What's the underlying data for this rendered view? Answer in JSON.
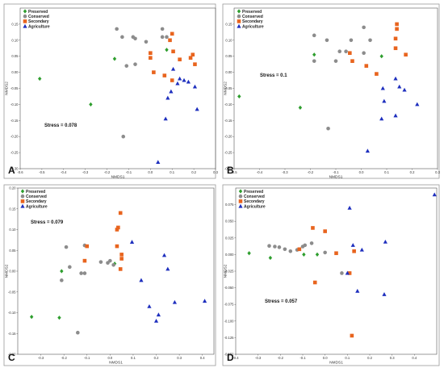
{
  "chart_data": [
    {
      "type": "scatter",
      "panel_letter": "A",
      "stress_label": "Stress = 0.078",
      "xlabel": "NMDS1",
      "ylabel": "NMDS2",
      "xlim": [
        -0.6,
        0.3
      ],
      "ylim": [
        -0.3,
        0.2
      ],
      "xticks": [
        -0.6,
        -0.5,
        -0.4,
        -0.3,
        -0.2,
        -0.1,
        0.0,
        0.1,
        0.2,
        0.3
      ],
      "xtick_labels": [
        "-0.6",
        "-0.5",
        "-0.4",
        "-0.3",
        "-0.2",
        "-0.1",
        "0.0",
        "0.1",
        "0.2",
        "0.3"
      ],
      "yticks": [
        -0.3,
        -0.25,
        -0.2,
        -0.15,
        -0.1,
        -0.05,
        0.0,
        0.05,
        0.1,
        0.15
      ],
      "ytick_labels": [
        "-0.30",
        "-0.25",
        "-0.20",
        "-0.15",
        "-0.10",
        "-0.05",
        "0.00",
        "0.05",
        "0.10",
        "0.15"
      ],
      "legend": "top-left",
      "series": [
        {
          "name": "Preserved",
          "color": "#2e9e2e",
          "marker": "diamond",
          "points": [
            [
              -0.51,
              -0.02
            ],
            [
              -0.275,
              -0.1
            ],
            [
              -0.165,
              0.042
            ],
            [
              0.075,
              0.07
            ]
          ]
        },
        {
          "name": "Conserved",
          "color": "#8c8c8c",
          "marker": "circle",
          "points": [
            [
              -0.155,
              0.135
            ],
            [
              -0.13,
              0.11
            ],
            [
              -0.125,
              -0.2
            ],
            [
              -0.11,
              0.02
            ],
            [
              -0.08,
              0.11
            ],
            [
              -0.07,
              0.105
            ],
            [
              -0.07,
              0.025
            ],
            [
              -0.02,
              0.095
            ],
            [
              0.055,
              0.135
            ],
            [
              0.055,
              0.11
            ],
            [
              0.075,
              0.11
            ]
          ]
        },
        {
          "name": "Secondary",
          "color": "#e8641e",
          "marker": "square",
          "points": [
            [
              0.0,
              0.06
            ],
            [
              0.0,
              0.045
            ],
            [
              0.015,
              0.0
            ],
            [
              0.065,
              -0.01
            ],
            [
              0.1,
              0.12
            ],
            [
              0.105,
              0.065
            ],
            [
              0.135,
              0.04
            ],
            [
              0.185,
              0.045
            ],
            [
              0.195,
              0.055
            ],
            [
              0.205,
              0.025
            ],
            [
              0.09,
              0.1
            ],
            [
              0.1,
              -0.025
            ]
          ]
        },
        {
          "name": "Agriculture",
          "color": "#1e2fbe",
          "marker": "triangle",
          "points": [
            [
              0.035,
              -0.28
            ],
            [
              0.07,
              -0.145
            ],
            [
              0.08,
              -0.08
            ],
            [
              0.095,
              -0.06
            ],
            [
              0.105,
              0.01
            ],
            [
              0.125,
              -0.035
            ],
            [
              0.135,
              -0.02
            ],
            [
              0.155,
              -0.025
            ],
            [
              0.175,
              -0.03
            ],
            [
              0.205,
              -0.045
            ],
            [
              0.215,
              -0.115
            ]
          ]
        }
      ]
    },
    {
      "type": "scatter",
      "panel_letter": "B",
      "stress_label": "Stress = 0.1",
      "xlabel": "NMDS1",
      "ylabel": "NMDS2",
      "xlim": [
        -0.5,
        0.3
      ],
      "ylim": [
        -0.3,
        0.2
      ],
      "xticks": [
        -0.5,
        -0.4,
        -0.3,
        -0.2,
        -0.1,
        0.0,
        0.1,
        0.2,
        0.3
      ],
      "xtick_labels": [
        "-0.5",
        "-0.4",
        "-0.3",
        "-0.2",
        "-0.1",
        "0.0",
        "0.1",
        "0.2",
        "0.3"
      ],
      "yticks": [
        -0.3,
        -0.25,
        -0.2,
        -0.15,
        -0.1,
        -0.05,
        0.0,
        0.05,
        0.1,
        0.15
      ],
      "ytick_labels": [
        "-0.30",
        "-0.25",
        "-0.20",
        "-0.15",
        "-0.10",
        "-0.05",
        "0.00",
        "0.05",
        "0.10",
        "0.15"
      ],
      "legend": "top-left",
      "series": [
        {
          "name": "Preserved",
          "color": "#2e9e2e",
          "marker": "diamond",
          "points": [
            [
              -0.48,
              -0.075
            ],
            [
              -0.24,
              -0.11
            ],
            [
              -0.185,
              0.055
            ],
            [
              0.08,
              0.05
            ]
          ]
        },
        {
          "name": "Conserved",
          "color": "#8c8c8c",
          "marker": "circle",
          "points": [
            [
              -0.185,
              0.115
            ],
            [
              -0.185,
              0.035
            ],
            [
              -0.135,
              0.1
            ],
            [
              -0.13,
              -0.175
            ],
            [
              -0.1,
              0.035
            ],
            [
              -0.085,
              0.065
            ],
            [
              -0.06,
              0.065
            ],
            [
              -0.04,
              0.1
            ],
            [
              0.01,
              0.14
            ],
            [
              0.035,
              0.1
            ],
            [
              0.01,
              0.06
            ]
          ]
        },
        {
          "name": "Secondary",
          "color": "#e8641e",
          "marker": "square",
          "points": [
            [
              -0.045,
              0.06
            ],
            [
              -0.035,
              0.035
            ],
            [
              0.02,
              0.02
            ],
            [
              0.06,
              -0.005
            ],
            [
              0.135,
              0.075
            ],
            [
              0.14,
              0.135
            ],
            [
              0.14,
              0.15
            ],
            [
              0.175,
              0.055
            ],
            [
              0.135,
              0.105
            ]
          ]
        },
        {
          "name": "Agriculture",
          "color": "#1e2fbe",
          "marker": "triangle",
          "points": [
            [
              0.025,
              -0.245
            ],
            [
              0.08,
              -0.145
            ],
            [
              0.09,
              -0.09
            ],
            [
              0.135,
              -0.135
            ],
            [
              0.135,
              -0.02
            ],
            [
              0.15,
              -0.045
            ],
            [
              0.17,
              -0.055
            ],
            [
              0.22,
              -0.1
            ],
            [
              0.085,
              -0.05
            ]
          ]
        }
      ]
    },
    {
      "type": "scatter",
      "panel_letter": "C",
      "stress_label": "Stress = 0.079",
      "xlabel": "NMDS1",
      "ylabel": "NMDS2",
      "xlim": [
        -0.4,
        0.45
      ],
      "ylim": [
        -0.2,
        0.2
      ],
      "xticks": [
        -0.3,
        -0.2,
        -0.1,
        0.0,
        0.1,
        0.2,
        0.3,
        0.4
      ],
      "xtick_labels": [
        "-0.3",
        "-0.2",
        "-0.1",
        "0.0",
        "0.1",
        "0.2",
        "0.3",
        "0.4"
      ],
      "yticks": [
        -0.2,
        -0.15,
        -0.1,
        -0.05,
        0.0,
        0.05,
        0.1,
        0.15,
        0.2
      ],
      "ytick_labels": [
        "-0.20",
        "-0.15",
        "-0.10",
        "-0.05",
        "0.00",
        "0.05",
        "0.10",
        "0.15",
        "0.20"
      ],
      "legend": "top-left",
      "series": [
        {
          "name": "Preserved",
          "color": "#2e9e2e",
          "marker": "diamond",
          "points": [
            [
              -0.34,
              -0.11
            ],
            [
              -0.22,
              -0.112
            ],
            [
              -0.21,
              0.0
            ],
            [
              0.02,
              0.018
            ]
          ]
        },
        {
          "name": "Conserved",
          "color": "#8c8c8c",
          "marker": "circle",
          "points": [
            [
              -0.21,
              -0.022
            ],
            [
              -0.19,
              0.058
            ],
            [
              -0.175,
              0.01
            ],
            [
              -0.14,
              -0.148
            ],
            [
              -0.125,
              -0.005
            ],
            [
              -0.11,
              -0.005
            ],
            [
              -0.11,
              0.062
            ],
            [
              -0.04,
              0.022
            ],
            [
              -0.01,
              0.02
            ],
            [
              0.0,
              0.025
            ],
            [
              0.015,
              0.015
            ]
          ]
        },
        {
          "name": "Secondary",
          "color": "#e8641e",
          "marker": "square",
          "points": [
            [
              -0.11,
              0.025
            ],
            [
              -0.1,
              0.06
            ],
            [
              0.03,
              0.1
            ],
            [
              0.035,
              0.105
            ],
            [
              0.045,
              0.14
            ],
            [
              0.05,
              0.04
            ],
            [
              0.05,
              0.03
            ],
            [
              0.045,
              0.005
            ],
            [
              0.03,
              0.06
            ]
          ]
        },
        {
          "name": "Agriculture",
          "color": "#1e2fbe",
          "marker": "triangle",
          "points": [
            [
              0.095,
              0.07
            ],
            [
              0.135,
              -0.022
            ],
            [
              0.17,
              -0.085
            ],
            [
              0.2,
              -0.12
            ],
            [
              0.235,
              0.038
            ],
            [
              0.25,
              0.005
            ],
            [
              0.28,
              -0.075
            ],
            [
              0.41,
              -0.072
            ],
            [
              0.21,
              -0.105
            ]
          ]
        }
      ]
    },
    {
      "type": "scatter",
      "panel_letter": "D",
      "stress_label": "Stress = 0.057",
      "xlabel": "NMDS1",
      "ylabel": "NMDS2",
      "xlim": [
        -0.4,
        0.5
      ],
      "ylim": [
        -0.15,
        0.1
      ],
      "xticks": [
        -0.4,
        -0.3,
        -0.2,
        -0.1,
        0.0,
        0.1,
        0.2,
        0.3,
        0.4
      ],
      "xtick_labels": [
        "-0.4",
        "-0.3",
        "-0.2",
        "-0.1",
        "0.0",
        "0.1",
        "0.2",
        "0.3",
        "0.4"
      ],
      "yticks": [
        -0.15,
        -0.125,
        -0.1,
        -0.075,
        -0.05,
        -0.025,
        0.0,
        0.025,
        0.05,
        0.075
      ],
      "ytick_labels": [
        "-0.150",
        "-0.125",
        "-0.100",
        "-0.075",
        "-0.050",
        "-0.025",
        "0.000",
        "0.025",
        "0.050",
        "0.075"
      ],
      "legend": "top-left",
      "series": [
        {
          "name": "Preserved",
          "color": "#2e9e2e",
          "marker": "diamond",
          "points": [
            [
              -0.34,
              0.002
            ],
            [
              -0.245,
              -0.005
            ],
            [
              -0.095,
              0.0
            ],
            [
              -0.035,
              0.0
            ]
          ]
        },
        {
          "name": "Conserved",
          "color": "#8c8c8c",
          "marker": "circle",
          "points": [
            [
              -0.25,
              0.013
            ],
            [
              -0.225,
              0.012
            ],
            [
              -0.205,
              0.011
            ],
            [
              -0.18,
              0.008
            ],
            [
              -0.155,
              0.005
            ],
            [
              -0.125,
              0.007
            ],
            [
              -0.1,
              0.012
            ],
            [
              -0.09,
              0.014
            ],
            [
              -0.06,
              0.017
            ],
            [
              0.075,
              -0.028
            ],
            [
              0.0,
              0.003
            ]
          ]
        },
        {
          "name": "Secondary",
          "color": "#e8641e",
          "marker": "square",
          "points": [
            [
              -0.115,
              0.008
            ],
            [
              -0.055,
              0.04
            ],
            [
              -0.045,
              -0.042
            ],
            [
              0.0,
              0.035
            ],
            [
              0.05,
              0.002
            ],
            [
              0.11,
              -0.028
            ],
            [
              0.12,
              -0.122
            ],
            [
              0.13,
              0.005
            ]
          ]
        },
        {
          "name": "Agriculture",
          "color": "#1e2fbe",
          "marker": "triangle",
          "points": [
            [
              0.1,
              -0.028
            ],
            [
              0.11,
              0.07
            ],
            [
              0.125,
              0.014
            ],
            [
              0.145,
              -0.055
            ],
            [
              0.165,
              0.007
            ],
            [
              0.265,
              -0.06
            ],
            [
              0.27,
              0.019
            ],
            [
              0.49,
              0.09
            ]
          ]
        }
      ]
    }
  ]
}
